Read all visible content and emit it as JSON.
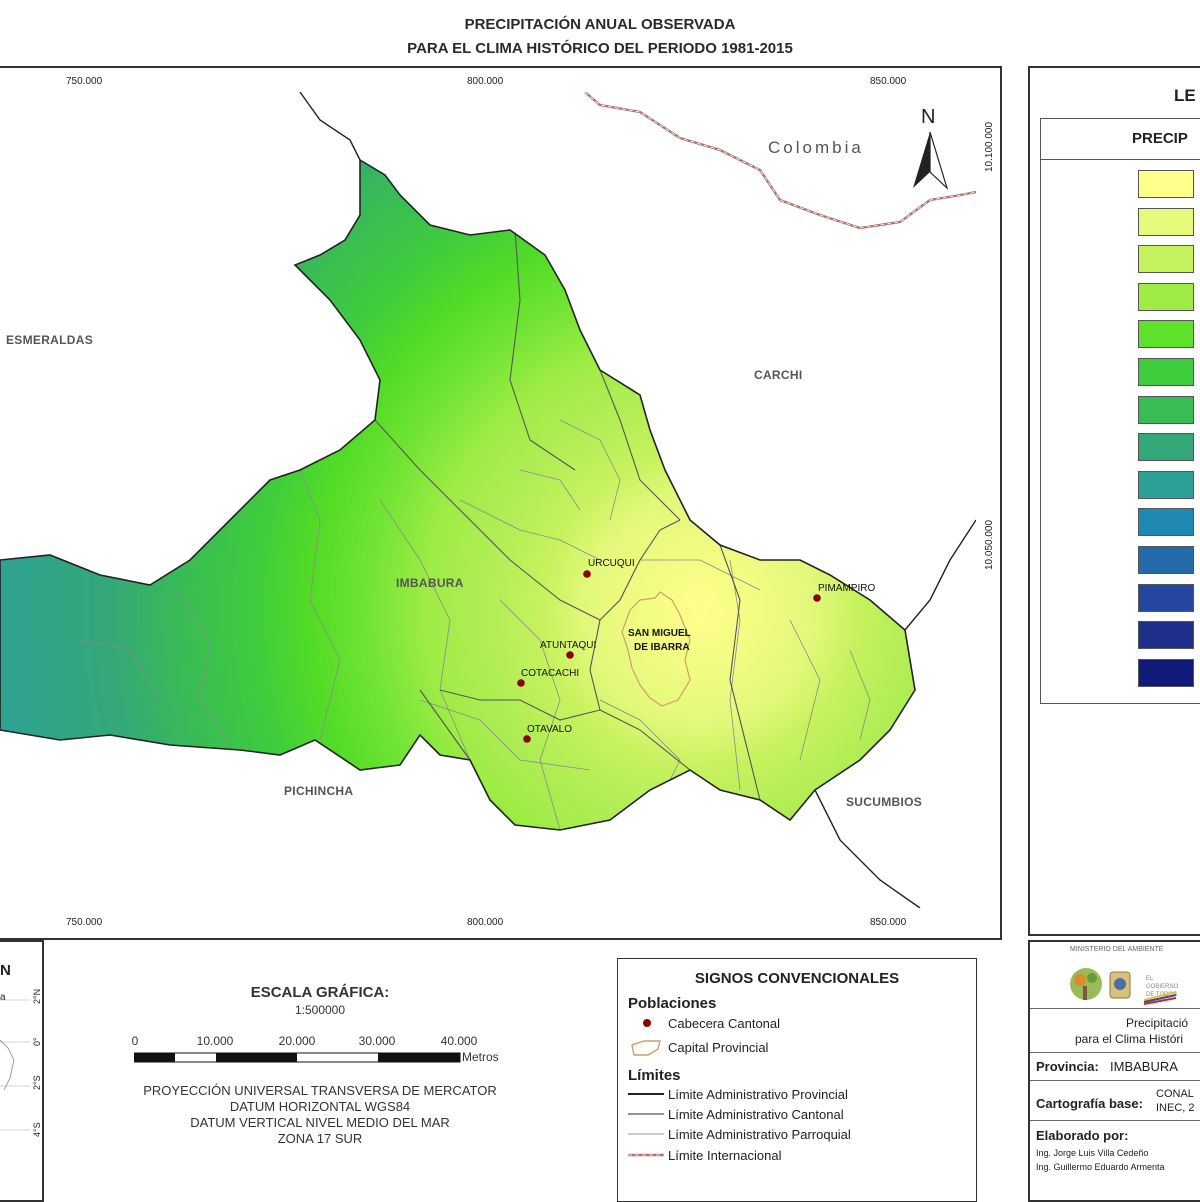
{
  "title": {
    "line1": "PRECIPITACIÓN ANUAL OBSERVADA",
    "line2": "PARA EL CLIMA HISTÓRICO DEL PERIODO 1981-2015"
  },
  "map": {
    "x_ticks": [
      "750.000",
      "800.000",
      "850.000"
    ],
    "y_ticks": [
      "10.100.000",
      "10.050.000"
    ],
    "country_label": "Colombia",
    "north_label": "N",
    "regions": {
      "esmeraldas": "ESMERALDAS",
      "carchi": "CARCHI",
      "imbabura": "IMBABURA",
      "pichincha": "PICHINCHA",
      "sucumbios": "SUCUMBIOS"
    },
    "cities": {
      "urcuqui": "URCUQUI",
      "pimampiro": "PIMAMPIRO",
      "atuntaqui": "ATUNTAQUI",
      "cotacachi": "COTACACHI",
      "otavalo": "OTAVALO",
      "ibarra_1": "SAN MIGUEL",
      "ibarra_2": "DE IBARRA"
    }
  },
  "legend": {
    "title": "LE",
    "subtitle": "PRECIP",
    "colors": [
      "#ffff8c",
      "#e5f97a",
      "#c6f25e",
      "#9eec45",
      "#5fe12c",
      "#3fcc3d",
      "#39bb55",
      "#34a878",
      "#2ea196",
      "#1f88b3",
      "#236aa8",
      "#2346a0",
      "#1e2f8c",
      "#101a78"
    ]
  },
  "scale": {
    "title": "ESCALA GRÁFICA:",
    "ratio": "1:500000",
    "ticks": [
      "0",
      "10.000",
      "20.000",
      "30.000",
      "40.000"
    ],
    "unit": "Metros",
    "proj1": "PROYECCIÓN UNIVERSAL TRANSVERSA DE MERCATOR",
    "proj2": "DATUM HORIZONTAL WGS84",
    "proj3": "DATUM VERTICAL NIVEL MEDIO DEL MAR",
    "proj4": "ZONA 17 SUR"
  },
  "inset": {
    "label_n": "N",
    "label_a": "a",
    "lat_ticks": [
      "2°N",
      "0°",
      "2°S",
      "4°S"
    ]
  },
  "signos": {
    "title": "SIGNOS CONVENCIONALES",
    "poblaciones": "Poblaciones",
    "cabecera": "Cabecera Cantonal",
    "capital": "Capital Provincial",
    "limites": "Límites",
    "lim_prov": "Límite Administrativo Provincial",
    "lim_cant": "Límite Administrativo Cantonal",
    "lim_parr": "Límite Administrativo Parroquial",
    "lim_int": "Límite Internacional"
  },
  "info": {
    "ministry": "MINISTERIO DEL AMBIENTE",
    "desc1": "Precipitació",
    "desc2": "para el Clima Históri",
    "provincia_label": "Provincia:",
    "provincia_value": "IMBABURA",
    "carto_label": "Cartografía base:",
    "carto_value1": "CONAL",
    "carto_value2": "INEC, 2",
    "elab_label": "Elaborado por:",
    "author1": "Ing. Jorge Luis Villa Cedeño",
    "author2": "Ing. Guillermo Eduardo Armenta"
  }
}
